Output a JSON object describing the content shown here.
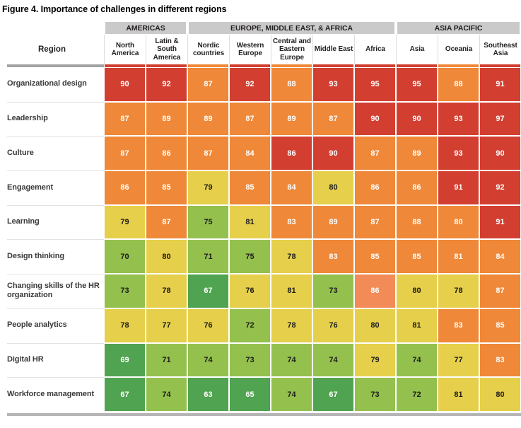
{
  "title": "Figure 4. Importance of challenges in different regions",
  "colors": {
    "cell_red": "#d23f31",
    "cell_orange": "#ef8838",
    "cell_salmon": "#f28b57",
    "cell_yellow": "#e6cf4b",
    "cell_green": "#94c04e",
    "cell_darkgreen": "#50a350",
    "group_band_gray": "#cacaca",
    "header_divider_gray": "#a3a3a3",
    "bottom_bar_gray": "#b5b5b5",
    "row_separator_gray": "#e3e3e3",
    "text_dark": "#231f20",
    "text_light": "#ffffff"
  },
  "chart_data": {
    "type": "heatmap",
    "title": "Figure 4. Importance of challenges in different regions",
    "row_header_label": "Region",
    "column_groups": [
      {
        "label": "AMERICAS",
        "span": 2
      },
      {
        "label": "EUROPE, MIDDLE EAST, & AFRICA",
        "span": 5
      },
      {
        "label": "ASIA PACIFIC",
        "span": 3
      }
    ],
    "columns": [
      "North America",
      "Latin & South America",
      "Nordic countries",
      "Western Europe",
      "Central and Eastern Europe",
      "Middle East",
      "Africa",
      "Asia",
      "Oceania",
      "Southeast Asia"
    ],
    "rows": [
      "Organizational design",
      "Leadership",
      "Culture",
      "Engagement",
      "Learning",
      "Design thinking",
      "Changing skills of the HR organization",
      "People analytics",
      "Digital HR",
      "Workforce management"
    ],
    "values": [
      [
        90,
        92,
        87,
        92,
        88,
        93,
        95,
        95,
        88,
        91
      ],
      [
        87,
        89,
        89,
        87,
        89,
        87,
        90,
        90,
        93,
        97
      ],
      [
        87,
        86,
        87,
        84,
        86,
        90,
        87,
        89,
        93,
        90
      ],
      [
        86,
        85,
        79,
        85,
        84,
        80,
        86,
        86,
        91,
        92
      ],
      [
        79,
        87,
        75,
        81,
        83,
        89,
        87,
        88,
        80,
        91
      ],
      [
        70,
        80,
        71,
        75,
        78,
        83,
        85,
        85,
        81,
        84
      ],
      [
        73,
        78,
        67,
        76,
        81,
        73,
        86,
        80,
        78,
        87
      ],
      [
        78,
        77,
        76,
        72,
        78,
        76,
        80,
        81,
        83,
        85
      ],
      [
        69,
        71,
        74,
        73,
        74,
        74,
        79,
        74,
        77,
        83
      ],
      [
        67,
        74,
        63,
        65,
        74,
        67,
        73,
        72,
        81,
        80
      ]
    ],
    "cell_colors": [
      [
        "red",
        "red",
        "orange",
        "red",
        "orange",
        "red",
        "red",
        "red",
        "orange",
        "red"
      ],
      [
        "orange",
        "orange",
        "orange",
        "orange",
        "orange",
        "orange",
        "red",
        "red",
        "red",
        "red"
      ],
      [
        "orange",
        "orange",
        "orange",
        "orange",
        "red",
        "red",
        "orange",
        "orange",
        "red",
        "red"
      ],
      [
        "orange",
        "orange",
        "yellow",
        "orange",
        "orange",
        "yellow",
        "orange",
        "orange",
        "red",
        "red"
      ],
      [
        "yellow",
        "orange",
        "green",
        "yellow",
        "orange",
        "orange",
        "orange",
        "orange",
        "orange",
        "red"
      ],
      [
        "green",
        "yellow",
        "green",
        "green",
        "yellow",
        "orange",
        "orange",
        "orange",
        "orange",
        "orange"
      ],
      [
        "green",
        "yellow",
        "darkgreen",
        "yellow",
        "yellow",
        "green",
        "salmon",
        "yellow",
        "yellow",
        "orange"
      ],
      [
        "yellow",
        "yellow",
        "yellow",
        "green",
        "yellow",
        "yellow",
        "yellow",
        "yellow",
        "orange",
        "orange"
      ],
      [
        "darkgreen",
        "green",
        "green",
        "green",
        "green",
        "green",
        "yellow",
        "green",
        "yellow",
        "orange"
      ],
      [
        "darkgreen",
        "green",
        "darkgreen",
        "darkgreen",
        "green",
        "darkgreen",
        "green",
        "green",
        "yellow",
        "yellow"
      ]
    ],
    "value_range": [
      63,
      97
    ],
    "layout_hints": {
      "grid": "off",
      "legend": "none"
    }
  }
}
